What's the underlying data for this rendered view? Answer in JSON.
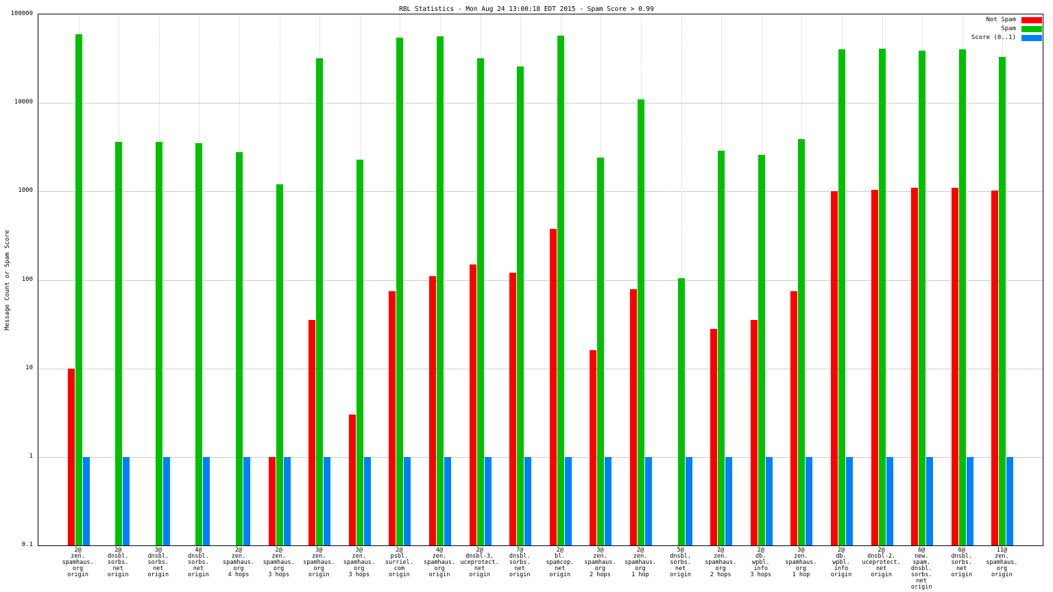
{
  "title": "RBL Statistics - Mon Aug 24 13:00:18 EDT 2015 - Spam Score > 0.99",
  "ylabel": "Message Count or Spam Score",
  "legend": [
    {
      "label": "Not Spam",
      "color": "#ff0000"
    },
    {
      "label": "Spam",
      "color": "#00c000"
    },
    {
      "label": "Score (0..1)",
      "color": "#0080ff"
    }
  ],
  "chart_data": {
    "type": "bar",
    "scale": "log",
    "ylim": [
      0.1,
      100000
    ],
    "grid": true,
    "legend_position": "top-right",
    "ytick_labels": [
      "0.1",
      "1",
      "10",
      "100",
      "1000",
      "10000",
      "100000"
    ],
    "categories": [
      [
        "2@",
        "zen.",
        "spamhaus.",
        "org",
        "origin"
      ],
      [
        "2@",
        "dnsbl.",
        "sorbs.",
        "net",
        "origin"
      ],
      [
        "3@",
        "dnsbl.",
        "sorbs.",
        "net",
        "origin"
      ],
      [
        "4@",
        "dnsbl.",
        "sorbs.",
        "net",
        "origin"
      ],
      [
        "2@",
        "zen.",
        "spamhaus.",
        "org",
        "4 hops"
      ],
      [
        "2@",
        "zen.",
        "spamhaus.",
        "org",
        "3 hops"
      ],
      [
        "3@",
        "zen.",
        "spamhaus.",
        "org",
        "origin"
      ],
      [
        "3@",
        "zen.",
        "spamhaus.",
        "org",
        "3 hops"
      ],
      [
        "2@",
        "psbl.",
        "surriel.",
        "com",
        "origin"
      ],
      [
        "4@",
        "zen.",
        "spamhaus.",
        "org",
        "origin"
      ],
      [
        "2@",
        "dnsbl-3.",
        "uceprotect.",
        "net",
        "origin"
      ],
      [
        "7@",
        "dnsbl.",
        "sorbs.",
        "net",
        "origin"
      ],
      [
        "2@",
        "bl.",
        "spamcop.",
        "net",
        "origin"
      ],
      [
        "3@",
        "zen.",
        "spamhaus.",
        "org",
        "2 hops"
      ],
      [
        "2@",
        "zen.",
        "spamhaus.",
        "org",
        "1 hop"
      ],
      [
        "5@",
        "dnsbl.",
        "sorbs.",
        "net",
        "origin"
      ],
      [
        "2@",
        "zen.",
        "spamhaus.",
        "org",
        "2 hops"
      ],
      [
        "2@",
        "db.",
        "wpbl.",
        "info",
        "3 hops"
      ],
      [
        "3@",
        "zen.",
        "spamhaus.",
        "org",
        "1 hop"
      ],
      [
        "2@",
        "db.",
        "wpbl.",
        "info",
        "origin"
      ],
      [
        "2@",
        "dnsbl-2.",
        "uceprotect.",
        "net",
        "origin"
      ],
      [
        "6@",
        "new.",
        "spam.",
        "dnsbl.",
        "sorbs.",
        "net",
        "origin"
      ],
      [
        "6@",
        "dnsbl.",
        "sorbs.",
        "net",
        "origin"
      ],
      [
        "11@",
        "zen.",
        "spamhaus.",
        "org",
        "origin"
      ]
    ],
    "series": [
      {
        "name": "Not Spam",
        "color": "#ff0000",
        "values": [
          10,
          0,
          0,
          0,
          0,
          1,
          35,
          3,
          75,
          110,
          150,
          120,
          380,
          16,
          78,
          0,
          28,
          35,
          75,
          1000,
          1050,
          1100,
          1100,
          1020
        ]
      },
      {
        "name": "Spam",
        "color": "#00c000",
        "values": [
          60000,
          3600,
          3600,
          3500,
          2800,
          1200,
          32000,
          2300,
          55000,
          57000,
          32000,
          26000,
          58000,
          2400,
          11000,
          105,
          2900,
          2600,
          3900,
          40000,
          41000,
          39000,
          40000,
          33000
        ]
      },
      {
        "name": "Score (0..1)",
        "color": "#0080ff",
        "values": [
          1,
          1,
          1,
          1,
          1,
          1,
          1,
          1,
          1,
          1,
          1,
          1,
          1,
          1,
          1,
          1,
          1,
          1,
          1,
          1,
          1,
          1,
          1,
          1
        ]
      }
    ]
  }
}
